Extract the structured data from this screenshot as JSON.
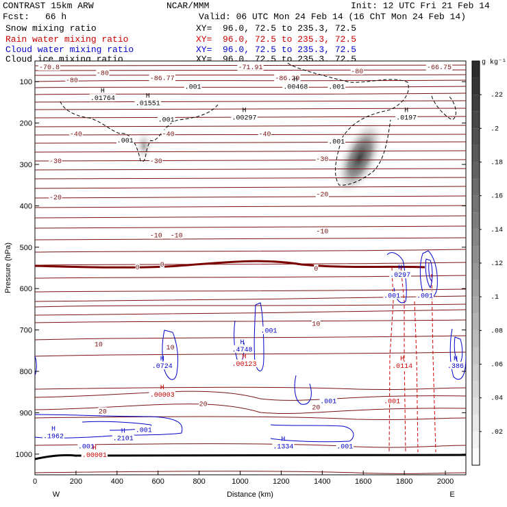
{
  "header": {
    "model": "CONTRAST 15km ARW",
    "org": "NCAR/MMM",
    "init": "Init: 12 UTC Fri 21 Feb 14",
    "fcst_label": "Fcst:",
    "fcst_value": "66 h",
    "valid": "Valid: 06 UTC Mon 24 Feb 14 (16 ChT Mon 24 Feb 14)"
  },
  "legend": [
    {
      "name": "Snow mixing ratio",
      "color": "#000000",
      "xy": "XY=  96.0, 72.5 to 235.3, 72.5"
    },
    {
      "name": "Rain water mixing ratio",
      "color": "#cc0000",
      "xy": "XY=  96.0, 72.5 to 235.3, 72.5"
    },
    {
      "name": "Cloud water mixing ratio",
      "color": "#0000cc",
      "xy": "XY=  96.0, 72.5 to 235.3, 72.5"
    },
    {
      "name": "Cloud ice mixing ratio",
      "color": "#000000",
      "xy": "XY=  96.0, 72.5 to 235.3, 72.5"
    }
  ],
  "chart_data": {
    "type": "cross-section",
    "xlabel": "Distance (km)",
    "ylabel": "Pressure (hPa)",
    "xlim": [
      0,
      2100
    ],
    "ylim": [
      1050,
      50
    ],
    "xticks": [
      0,
      200,
      400,
      600,
      800,
      1000,
      1200,
      1400,
      1600,
      1800,
      2000
    ],
    "yticks": [
      100,
      200,
      300,
      400,
      500,
      600,
      700,
      800,
      900,
      1000
    ],
    "x_left_label": "W",
    "x_right_label": "E",
    "colorbar": {
      "unit": "g kg⁻¹",
      "ticks": [
        ".02",
        ".04",
        ".06",
        ".08",
        ".1",
        ".12",
        ".14",
        ".16",
        ".18",
        ".2",
        ".22"
      ],
      "tick_values": [
        0.02,
        0.04,
        0.06,
        0.08,
        0.1,
        0.12,
        0.14,
        0.16,
        0.18,
        0.2,
        0.22
      ],
      "max": 0.24
    },
    "isotherm_labels": [
      {
        "text": "-70.8",
        "x": 70,
        "p": 68
      },
      {
        "text": "-80",
        "x": 330,
        "p": 82
      },
      {
        "text": "-80",
        "x": 180,
        "p": 100
      },
      {
        "text": "-80",
        "x": 1570,
        "p": 78
      },
      {
        "text": "-71.91",
        "x": 1050,
        "p": 68
      },
      {
        "text": "-66.75",
        "x": 1970,
        "p": 68
      },
      {
        "text": "-86.77",
        "x": 620,
        "p": 95
      },
      {
        "text": "-86.29",
        "x": 1230,
        "p": 95
      },
      {
        "text": "-40",
        "x": 200,
        "p": 230
      },
      {
        "text": "-40",
        "x": 650,
        "p": 230
      },
      {
        "text": "-40",
        "x": 1120,
        "p": 230
      },
      {
        "text": "-30",
        "x": 100,
        "p": 295
      },
      {
        "text": "-30",
        "x": 590,
        "p": 295
      },
      {
        "text": "-30",
        "x": 1400,
        "p": 290
      },
      {
        "text": "-20",
        "x": 100,
        "p": 383
      },
      {
        "text": "-20",
        "x": 1400,
        "p": 375
      },
      {
        "text": "-10",
        "x": 590,
        "p": 475
      },
      {
        "text": "-10",
        "x": 690,
        "p": 475
      },
      {
        "text": "-10",
        "x": 1400,
        "p": 465
      },
      {
        "text": "0",
        "x": 500,
        "p": 552
      },
      {
        "text": "0",
        "x": 620,
        "p": 545
      },
      {
        "text": "0",
        "x": 1370,
        "p": 555
      },
      {
        "text": "10",
        "x": 310,
        "p": 738
      },
      {
        "text": "10",
        "x": 660,
        "p": 745
      },
      {
        "text": "10",
        "x": 1370,
        "p": 688
      },
      {
        "text": "20",
        "x": 330,
        "p": 900
      },
      {
        "text": "20",
        "x": 820,
        "p": 882
      },
      {
        "text": "20",
        "x": 1370,
        "p": 890
      }
    ],
    "maxima": [
      {
        "text": ".01764",
        "x": 330,
        "p": 143,
        "color": "#000000"
      },
      {
        "text": ".01551",
        "x": 550,
        "p": 155,
        "color": "#000000"
      },
      {
        "text": ".00297",
        "x": 1020,
        "p": 190,
        "color": "#000000"
      },
      {
        "text": ".0197",
        "x": 1810,
        "p": 190,
        "color": "#000000"
      },
      {
        "text": ".00468",
        "x": 1270,
        "p": 115,
        "color": "#000000"
      },
      {
        "text": ".0724",
        "x": 620,
        "p": 790,
        "color": "#0000cc"
      },
      {
        "text": ".4748",
        "x": 1010,
        "p": 750,
        "color": "#0000cc"
      },
      {
        "text": ".1962",
        "x": 90,
        "p": 960,
        "color": "#0000cc"
      },
      {
        "text": ".2101",
        "x": 430,
        "p": 965,
        "color": "#0000cc"
      },
      {
        "text": ".1334",
        "x": 1210,
        "p": 985,
        "color": "#0000cc"
      },
      {
        "text": ".386",
        "x": 2050,
        "p": 790,
        "color": "#0000cc"
      },
      {
        "text": ".0297",
        "x": 1780,
        "p": 570,
        "color": "#0000cc"
      },
      {
        "text": ".00003",
        "x": 620,
        "p": 860,
        "color": "#cc0000"
      },
      {
        "text": ".00123",
        "x": 1020,
        "p": 785,
        "color": "#cc0000"
      },
      {
        "text": ".0114",
        "x": 1790,
        "p": 790,
        "color": "#cc0000"
      },
      {
        "text": ".00001",
        "x": 290,
        "p": 1005,
        "color": "#cc0000"
      }
    ],
    "contour_labels": [
      {
        "text": ".001",
        "x": 440,
        "p": 245,
        "color": "#000000"
      },
      {
        "text": ".001",
        "x": 640,
        "p": 195,
        "color": "#000000"
      },
      {
        "text": ".001",
        "x": 770,
        "p": 115,
        "color": "#000000"
      },
      {
        "text": ".001",
        "x": 1470,
        "p": 248,
        "color": "#000000"
      },
      {
        "text": ".001",
        "x": 1470,
        "p": 115,
        "color": "#000000"
      },
      {
        "text": ".001",
        "x": 1140,
        "p": 705,
        "color": "#0000cc"
      },
      {
        "text": ".001",
        "x": 530,
        "p": 945,
        "color": "#0000cc"
      },
      {
        "text": ".001",
        "x": 250,
        "p": 985,
        "color": "#0000cc"
      },
      {
        "text": ".001",
        "x": 1430,
        "p": 875,
        "color": "#0000cc"
      },
      {
        "text": ".001",
        "x": 1510,
        "p": 985,
        "color": "#0000cc"
      },
      {
        "text": ".001",
        "x": 1740,
        "p": 620,
        "color": "#0000cc"
      },
      {
        "text": ".001",
        "x": 1900,
        "p": 620,
        "color": "#0000cc"
      },
      {
        "text": ".001",
        "x": 1740,
        "p": 875,
        "color": "#cc0000"
      }
    ]
  }
}
